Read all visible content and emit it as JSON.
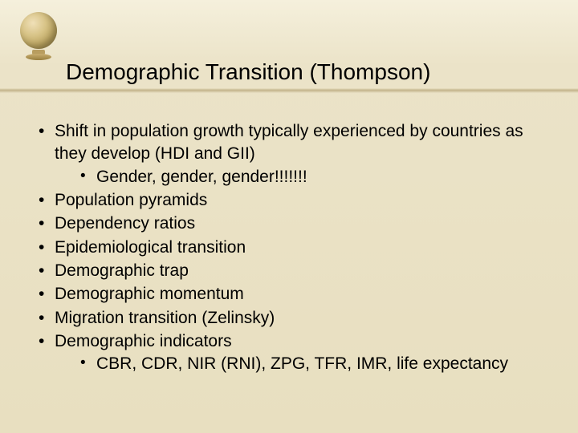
{
  "title": "Demographic Transition (Thompson)",
  "bullets": [
    {
      "text": "Shift in population growth typically experienced by countries as they develop (HDI and GII)",
      "sub": [
        "Gender, gender, gender!!!!!!!"
      ]
    },
    {
      "text": "Population pyramids"
    },
    {
      "text": "Dependency ratios"
    },
    {
      "text": "Epidemiological transition"
    },
    {
      "text": "Demographic trap"
    },
    {
      "text": "Demographic momentum"
    },
    {
      "text": "Migration transition (Zelinsky)"
    },
    {
      "text": "Demographic indicators",
      "sub": [
        "CBR, CDR, NIR (RNI), ZPG, TFR, IMR, life expectancy"
      ]
    }
  ],
  "colors": {
    "background_top": "#f5f0dc",
    "background_bottom": "#e8dfc0",
    "text": "#000000",
    "globe_light": "#f0e0b8",
    "globe_dark": "#9a8548"
  },
  "typography": {
    "title_fontsize": 28,
    "body_fontsize": 21,
    "font_family": "Arial"
  }
}
